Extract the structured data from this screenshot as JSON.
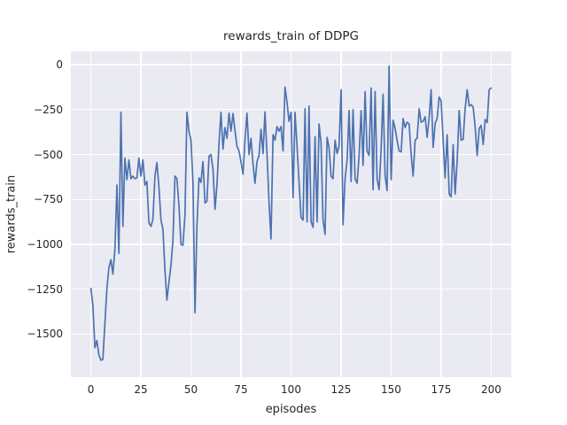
{
  "figure": {
    "kind": "matplotlib-seaborn-figure",
    "background_color": "#ffffff"
  },
  "chart_data": {
    "type": "line",
    "title": "rewards_train of DDPG",
    "xlabel": "episodes",
    "ylabel": "rewards_train",
    "legend": null,
    "grid": true,
    "axes_background_color": "#eaeaf2",
    "gridline_color": "#ffffff",
    "line_color": "#4c72b0",
    "text_color": "#262626",
    "xlim": [
      -10,
      210
    ],
    "ylim": [
      -1739,
      74
    ],
    "xticks": {
      "values": [
        0,
        25,
        50,
        75,
        100,
        125,
        150,
        175,
        200
      ],
      "labels": [
        "0",
        "25",
        "50",
        "75",
        "100",
        "125",
        "150",
        "175",
        "200"
      ]
    },
    "yticks": {
      "values": [
        0,
        -250,
        -500,
        -750,
        -1000,
        -1250,
        -1500
      ],
      "labels": [
        "0",
        "−250",
        "−500",
        "−750",
        "−1000",
        "−1250",
        "−1500"
      ]
    },
    "x": {
      "start": 0,
      "step": 1,
      "count": 201
    },
    "values": [
      -1245,
      -1340,
      -1575,
      -1535,
      -1615,
      -1645,
      -1640,
      -1440,
      -1245,
      -1130,
      -1085,
      -1165,
      -1030,
      -670,
      -1050,
      -265,
      -900,
      -520,
      -640,
      -530,
      -635,
      -620,
      -635,
      -630,
      -520,
      -620,
      -530,
      -670,
      -650,
      -880,
      -900,
      -860,
      -620,
      -545,
      -680,
      -865,
      -915,
      -1145,
      -1310,
      -1210,
      -1115,
      -980,
      -620,
      -635,
      -785,
      -1000,
      -1005,
      -835,
      -265,
      -370,
      -420,
      -650,
      -1380,
      -900,
      -630,
      -655,
      -540,
      -770,
      -760,
      -510,
      -500,
      -580,
      -805,
      -670,
      -440,
      -265,
      -470,
      -350,
      -410,
      -270,
      -370,
      -272,
      -365,
      -455,
      -480,
      -540,
      -610,
      -420,
      -270,
      -500,
      -410,
      -550,
      -660,
      -540,
      -505,
      -360,
      -495,
      -263,
      -500,
      -770,
      -970,
      -390,
      -420,
      -345,
      -370,
      -345,
      -480,
      -125,
      -210,
      -315,
      -265,
      -740,
      -265,
      -455,
      -650,
      -850,
      -865,
      -245,
      -875,
      -230,
      -875,
      -905,
      -400,
      -875,
      -330,
      -435,
      -865,
      -945,
      -405,
      -460,
      -620,
      -635,
      -420,
      -495,
      -455,
      -140,
      -890,
      -635,
      -530,
      -255,
      -650,
      -250,
      -635,
      -660,
      -510,
      -255,
      -560,
      -150,
      -480,
      -505,
      -130,
      -695,
      -150,
      -635,
      -695,
      -470,
      -165,
      -620,
      -700,
      -8,
      -640,
      -310,
      -355,
      -420,
      -480,
      -485,
      -300,
      -350,
      -320,
      -330,
      -495,
      -620,
      -420,
      -410,
      -245,
      -320,
      -315,
      -290,
      -405,
      -295,
      -140,
      -460,
      -325,
      -300,
      -180,
      -200,
      -420,
      -630,
      -390,
      -720,
      -735,
      -445,
      -720,
      -540,
      -255,
      -420,
      -415,
      -245,
      -140,
      -230,
      -222,
      -238,
      -345,
      -505,
      -355,
      -338,
      -445,
      -305,
      -322,
      -140,
      -130
    ]
  }
}
